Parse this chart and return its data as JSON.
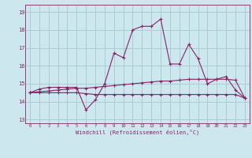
{
  "bg_color": "#cce8ee",
  "grid_color": "#aaccd4",
  "line_color": "#882266",
  "xlabel": "Windchill (Refroidissement éolien,°C)",
  "xlim": [
    -0.5,
    23.5
  ],
  "ylim": [
    12.8,
    19.4
  ],
  "yticks": [
    13,
    14,
    15,
    16,
    17,
    18,
    19
  ],
  "xticks": [
    0,
    1,
    2,
    3,
    4,
    5,
    6,
    7,
    8,
    9,
    10,
    11,
    12,
    13,
    14,
    15,
    16,
    17,
    18,
    19,
    20,
    21,
    22,
    23
  ],
  "series1_x": [
    0,
    1,
    2,
    3,
    4,
    5,
    6,
    7,
    8,
    9,
    10,
    11,
    12,
    13,
    14,
    15,
    16,
    17,
    18,
    19,
    20,
    21,
    22,
    23
  ],
  "series1_y": [
    14.5,
    14.7,
    14.8,
    14.8,
    14.8,
    14.8,
    13.55,
    14.1,
    15.0,
    16.7,
    16.45,
    18.0,
    18.2,
    18.2,
    18.6,
    16.1,
    16.1,
    17.2,
    16.4,
    15.0,
    15.25,
    15.4,
    14.65,
    14.2
  ],
  "series2_x": [
    0,
    1,
    2,
    3,
    4,
    5,
    6,
    7,
    8,
    9,
    10,
    11,
    12,
    13,
    14,
    15,
    16,
    17,
    18,
    19,
    20,
    21,
    22,
    23
  ],
  "series2_y": [
    14.5,
    14.55,
    14.6,
    14.65,
    14.7,
    14.75,
    14.75,
    14.8,
    14.85,
    14.9,
    14.95,
    15.0,
    15.05,
    15.1,
    15.15,
    15.15,
    15.2,
    15.25,
    15.25,
    15.25,
    15.25,
    15.25,
    15.2,
    14.2
  ],
  "series3_x": [
    0,
    1,
    2,
    3,
    4,
    5,
    6,
    7,
    8,
    9,
    10,
    11,
    12,
    13,
    14,
    15,
    16,
    17,
    18,
    19,
    20,
    21,
    22,
    23
  ],
  "series3_y": [
    14.5,
    14.5,
    14.5,
    14.5,
    14.5,
    14.5,
    14.45,
    14.4,
    14.4,
    14.4,
    14.4,
    14.4,
    14.4,
    14.4,
    14.4,
    14.4,
    14.4,
    14.4,
    14.4,
    14.4,
    14.4,
    14.4,
    14.4,
    14.2
  ]
}
